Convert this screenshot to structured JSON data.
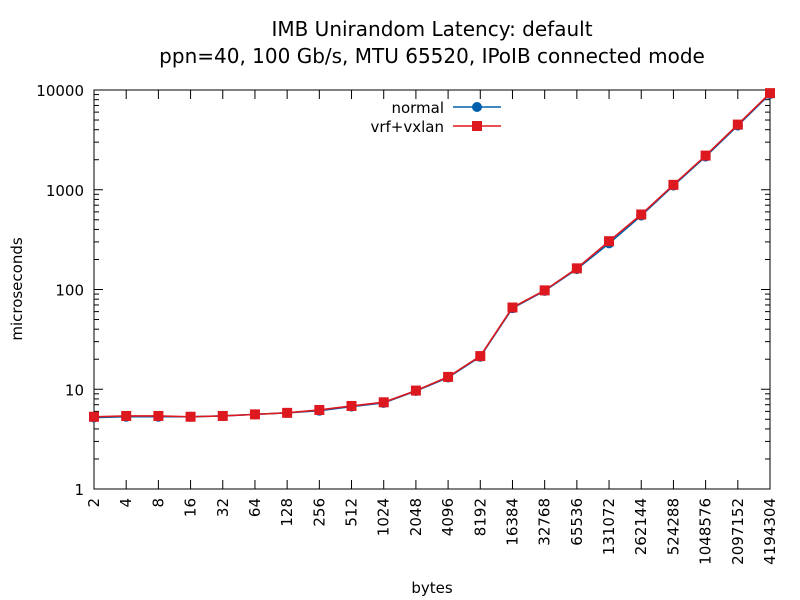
{
  "chart_data": {
    "type": "line",
    "title": "IMB Unirandom Latency: default",
    "subtitle": "ppn=40, 100 Gb/s, MTU 65520, IPoIB connected mode",
    "xlabel": "bytes",
    "ylabel": "microseconds",
    "x_scale": "log",
    "y_scale": "log",
    "ylim": [
      1,
      10000
    ],
    "y_ticks": [
      1,
      10,
      100,
      1000,
      10000
    ],
    "y_tick_labels": [
      "1",
      "10",
      "100",
      "1000",
      "10000"
    ],
    "x": [
      2,
      4,
      8,
      16,
      32,
      64,
      128,
      256,
      512,
      1024,
      2048,
      4096,
      8192,
      16384,
      32768,
      65536,
      131072,
      262144,
      524288,
      1048576,
      2097152,
      4194304
    ],
    "x_tick_labels": [
      "2",
      "4",
      "8",
      "16",
      "32",
      "64",
      "128",
      "256",
      "512",
      "1024",
      "2048",
      "4096",
      "8192",
      "16384",
      "32768",
      "65536",
      "131072",
      "262144",
      "524288",
      "1048576",
      "2097152",
      "4194304"
    ],
    "legend_position": "top-center",
    "grid": false,
    "series": [
      {
        "name": "normal",
        "color": "#0060ad",
        "marker": "circle",
        "values": [
          5.2,
          5.3,
          5.3,
          5.3,
          5.4,
          5.6,
          5.8,
          6.1,
          6.7,
          7.3,
          9.6,
          13.1,
          21.2,
          65.0,
          97.0,
          160.0,
          290.0,
          550.0,
          1100.0,
          2150.0,
          4400.0,
          9100.0
        ]
      },
      {
        "name": "vrf+vxlan",
        "color": "#dd181f",
        "marker": "square",
        "values": [
          5.3,
          5.4,
          5.4,
          5.3,
          5.4,
          5.6,
          5.8,
          6.2,
          6.8,
          7.4,
          9.7,
          13.3,
          21.5,
          66.0,
          98.0,
          163.0,
          305.0,
          565.0,
          1120.0,
          2200.0,
          4500.0,
          9300.0
        ]
      }
    ]
  }
}
